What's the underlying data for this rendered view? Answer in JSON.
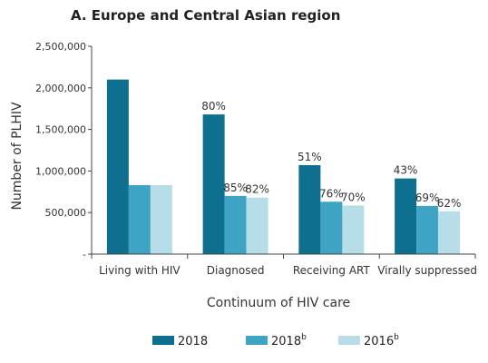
{
  "chart_data": {
    "type": "bar",
    "title": "A. Europe and Central Asian region",
    "xlabel": "Continuum of HIV care",
    "ylabel": "Number of PLHIV",
    "ylim": [
      0,
      2500000
    ],
    "yticks": [
      {
        "value": 0,
        "label": "-"
      },
      {
        "value": 500000,
        "label": "500,000"
      },
      {
        "value": 1000000,
        "label": "1,000,000"
      },
      {
        "value": 1500000,
        "label": "1,500,000"
      },
      {
        "value": 2000000,
        "label": "2,000,000"
      },
      {
        "value": 2500000,
        "label": "2,500,000"
      }
    ],
    "categories": [
      "Living with HIV",
      "Diagnosed",
      "Receiving ART",
      "Virally suppressed"
    ],
    "series": [
      {
        "name": "2018",
        "sup": "",
        "color": "#0e6f8f",
        "values": [
          2100000,
          1680000,
          1070000,
          910000
        ],
        "labels": [
          "",
          "80%",
          "51%",
          "43%"
        ]
      },
      {
        "name": "2018",
        "sup": "b",
        "color": "#3ea3c4",
        "values": [
          830000,
          700000,
          630000,
          580000
        ],
        "labels": [
          "",
          "85%",
          "76%",
          "69%"
        ]
      },
      {
        "name": "2016",
        "sup": "b",
        "color": "#b7dde9",
        "values": [
          830000,
          680000,
          585000,
          515000
        ],
        "labels": [
          "",
          "82%",
          "70%",
          "62%"
        ]
      }
    ],
    "grid": false,
    "legend_position": "bottom"
  }
}
